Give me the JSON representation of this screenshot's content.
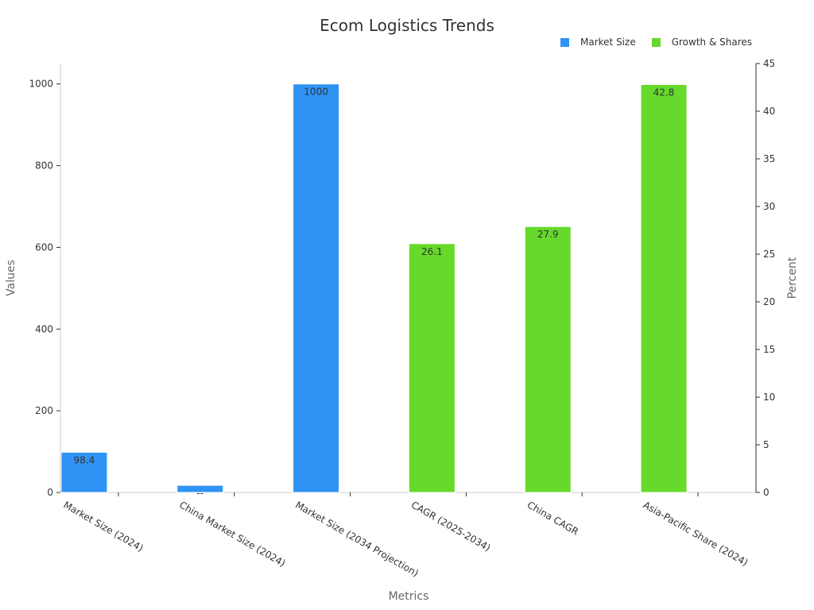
{
  "chart_data": {
    "type": "bar",
    "title": "Ecom Logistics Trends",
    "xlabel": "Metrics",
    "ylabel": "Values",
    "y2label": "Percent",
    "categories": [
      "Market Size (2024)",
      "China Market Size (2024)",
      "Market Size (2034 Projection)",
      "CAGR (2025-2034)",
      "China CAGR",
      "Asia-Pacific Share (2024)"
    ],
    "ylim": [
      0,
      1050
    ],
    "y2lim": [
      0,
      45
    ],
    "yticks": [
      0,
      200,
      400,
      600,
      800,
      1000
    ],
    "y2ticks": [
      0,
      5,
      10,
      15,
      20,
      25,
      30,
      35,
      40,
      45
    ],
    "series": [
      {
        "name": "Market Size",
        "axis": "left",
        "color": "#2f93f5",
        "values": [
          98.4,
          17.4,
          1000,
          null,
          null,
          null
        ],
        "labels": [
          "98.4",
          "--",
          "1000",
          "",
          "",
          ""
        ]
      },
      {
        "name": "Growth & Shares",
        "axis": "right",
        "color": "#66d92a",
        "values": [
          null,
          null,
          null,
          26.1,
          27.9,
          42.8
        ],
        "labels": [
          "",
          "",
          "",
          "26.1",
          "27.9",
          "42.8"
        ]
      }
    ],
    "legend_position": "top-right",
    "grid": false
  }
}
